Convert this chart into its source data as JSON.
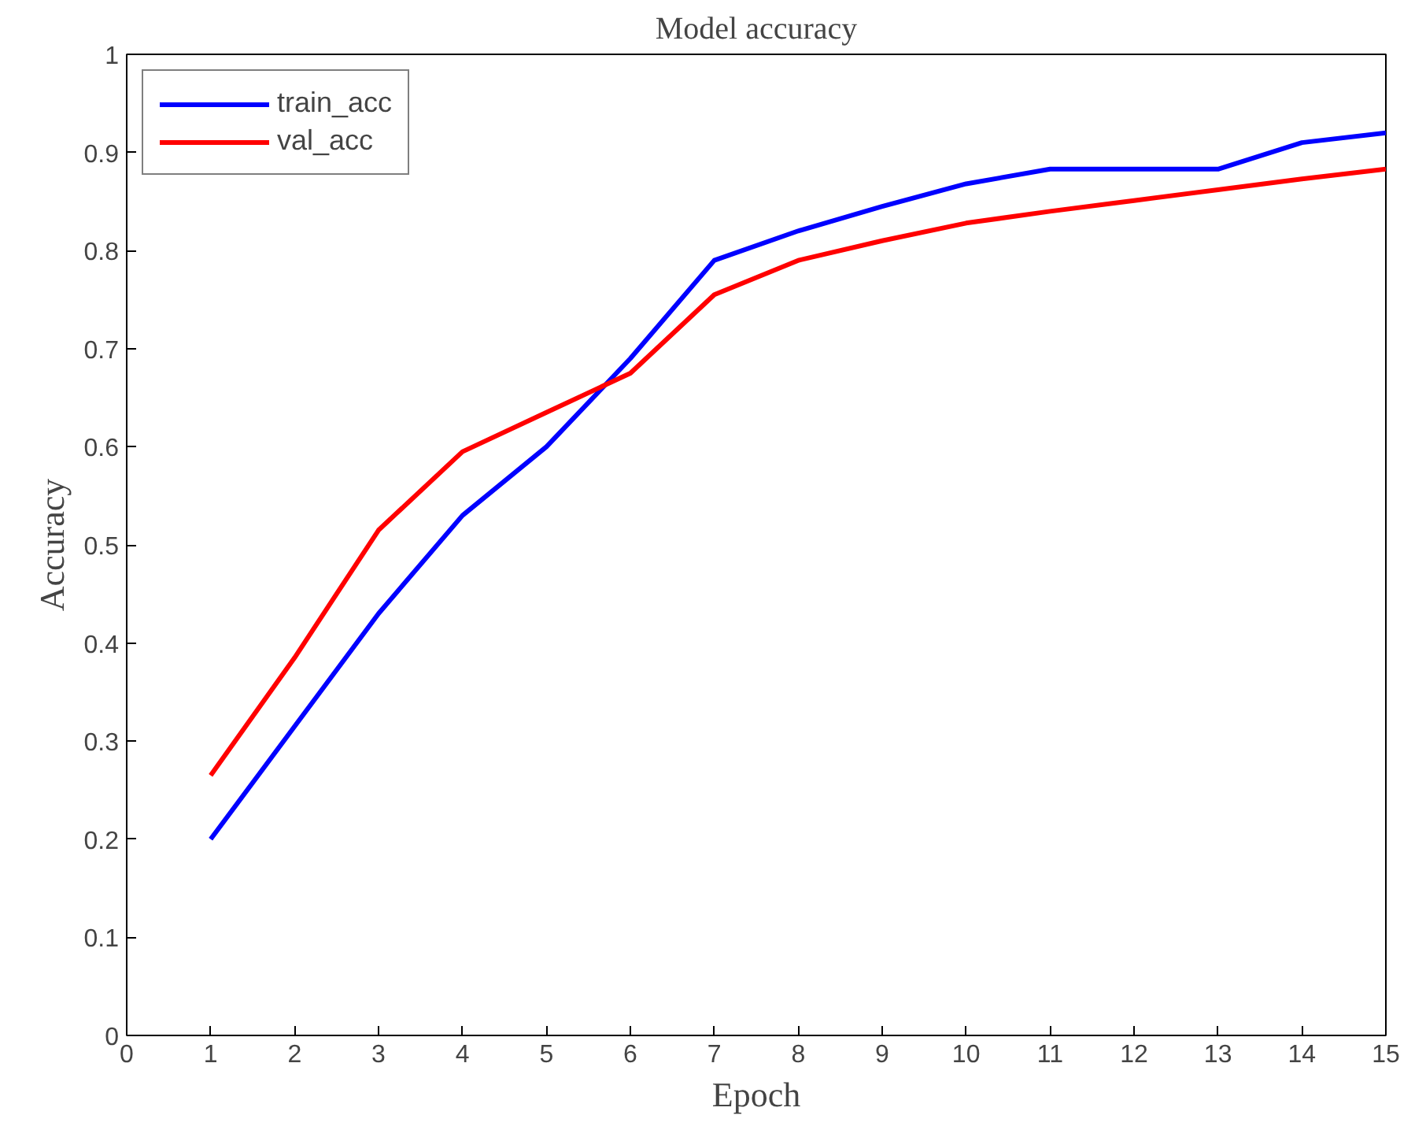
{
  "chart_data": {
    "type": "line",
    "title": "Model accuracy",
    "xlabel": "Epoch",
    "ylabel": "Accuracy",
    "x": [
      1,
      2,
      3,
      4,
      5,
      6,
      7,
      8,
      9,
      10,
      11,
      12,
      13,
      14,
      15
    ],
    "series": [
      {
        "name": "train_acc",
        "color": "#0000ff",
        "values": [
          0.2,
          0.315,
          0.43,
          0.53,
          0.6,
          0.69,
          0.79,
          0.82,
          0.845,
          0.868,
          0.883,
          0.883,
          0.883,
          0.91,
          0.92
        ]
      },
      {
        "name": "val_acc",
        "color": "#ff0000",
        "values": [
          0.265,
          0.385,
          0.515,
          0.595,
          0.635,
          0.675,
          0.755,
          0.79,
          0.81,
          0.828,
          0.84,
          0.851,
          0.862,
          0.873,
          0.883
        ]
      }
    ],
    "xlim": [
      0,
      15
    ],
    "ylim": [
      0,
      1
    ],
    "xticks": [
      0,
      1,
      2,
      3,
      4,
      5,
      6,
      7,
      8,
      9,
      10,
      11,
      12,
      13,
      14,
      15
    ],
    "yticks": [
      0,
      0.1,
      0.2,
      0.3,
      0.4,
      0.5,
      0.6,
      0.7,
      0.8,
      0.9,
      1
    ],
    "grid": false,
    "legend": "top left",
    "marker": "none",
    "line_style": "solid"
  }
}
